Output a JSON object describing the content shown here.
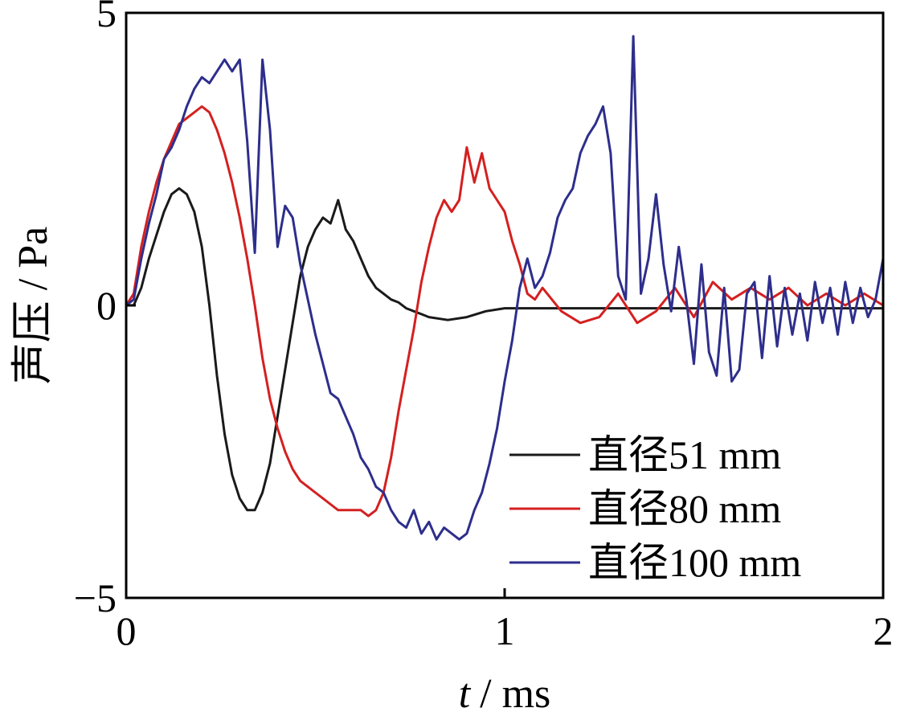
{
  "chart_data": {
    "type": "line",
    "title": "",
    "xlabel_var": "t",
    "xlabel_unit": "/ ms",
    "ylabel": "声压 / Pa",
    "xlim": [
      0,
      2
    ],
    "ylim": [
      -5,
      5
    ],
    "xticks": [
      0,
      1,
      2
    ],
    "xtick_labels": [
      "0",
      "1",
      "2"
    ],
    "yticks": [
      5,
      0,
      -5
    ],
    "ytick_labels": [
      "5",
      "0",
      "−5"
    ],
    "grid": false,
    "legend_position": "bottom-right",
    "series": [
      {
        "name": "直径51 mm",
        "color": "#1a1a1a",
        "x": [
          0,
          0.02,
          0.04,
          0.06,
          0.08,
          0.1,
          0.12,
          0.14,
          0.16,
          0.18,
          0.2,
          0.22,
          0.24,
          0.26,
          0.28,
          0.3,
          0.32,
          0.34,
          0.36,
          0.38,
          0.4,
          0.42,
          0.44,
          0.46,
          0.48,
          0.5,
          0.52,
          0.54,
          0.56,
          0.58,
          0.6,
          0.62,
          0.64,
          0.66,
          0.68,
          0.7,
          0.72,
          0.74,
          0.76,
          0.78,
          0.8,
          0.85,
          0.9,
          0.95,
          1.0,
          1.1,
          1.2,
          1.3,
          1.4,
          1.5,
          1.6,
          1.7,
          1.8,
          1.9,
          2.0
        ],
        "y": [
          0.0,
          0.0,
          0.3,
          0.8,
          1.2,
          1.6,
          1.9,
          2.0,
          1.9,
          1.6,
          1.0,
          0.0,
          -1.2,
          -2.2,
          -2.9,
          -3.3,
          -3.5,
          -3.5,
          -3.2,
          -2.7,
          -1.9,
          -1.1,
          -0.3,
          0.5,
          1.0,
          1.3,
          1.5,
          1.4,
          1.8,
          1.3,
          1.1,
          0.8,
          0.5,
          0.3,
          0.2,
          0.1,
          0.05,
          -0.05,
          -0.1,
          -0.15,
          -0.2,
          -0.25,
          -0.2,
          -0.1,
          -0.05,
          -0.05,
          -0.05,
          -0.05,
          -0.05,
          -0.05,
          -0.05,
          -0.05,
          -0.05,
          -0.05,
          -0.05
        ]
      },
      {
        "name": "直径80 mm",
        "color": "#d42020",
        "x": [
          0,
          0.02,
          0.04,
          0.06,
          0.08,
          0.1,
          0.12,
          0.14,
          0.16,
          0.18,
          0.2,
          0.22,
          0.24,
          0.26,
          0.28,
          0.3,
          0.32,
          0.34,
          0.36,
          0.38,
          0.4,
          0.42,
          0.44,
          0.46,
          0.48,
          0.5,
          0.52,
          0.54,
          0.56,
          0.58,
          0.6,
          0.62,
          0.64,
          0.66,
          0.68,
          0.7,
          0.72,
          0.74,
          0.76,
          0.78,
          0.8,
          0.82,
          0.84,
          0.86,
          0.88,
          0.9,
          0.92,
          0.94,
          0.96,
          0.98,
          1.0,
          1.02,
          1.04,
          1.06,
          1.08,
          1.1,
          1.15,
          1.2,
          1.25,
          1.3,
          1.35,
          1.4,
          1.45,
          1.5,
          1.55,
          1.6,
          1.65,
          1.7,
          1.75,
          1.8,
          1.85,
          1.9,
          1.95,
          2.0
        ],
        "y": [
          0.0,
          0.2,
          1.0,
          1.6,
          2.1,
          2.5,
          2.8,
          3.1,
          3.2,
          3.3,
          3.4,
          3.3,
          3.0,
          2.6,
          2.1,
          1.5,
          0.8,
          0.0,
          -0.9,
          -1.6,
          -2.1,
          -2.5,
          -2.8,
          -3.0,
          -3.1,
          -3.2,
          -3.3,
          -3.4,
          -3.5,
          -3.5,
          -3.5,
          -3.5,
          -3.6,
          -3.5,
          -3.2,
          -2.6,
          -1.8,
          -1.1,
          -0.4,
          0.4,
          1.0,
          1.5,
          1.8,
          1.6,
          1.8,
          2.7,
          2.1,
          2.6,
          2.0,
          1.8,
          1.6,
          1.1,
          0.7,
          0.2,
          0.1,
          0.3,
          -0.1,
          -0.3,
          -0.2,
          0.2,
          -0.3,
          -0.1,
          0.3,
          -0.2,
          0.4,
          0.1,
          0.3,
          0.1,
          0.3,
          0.0,
          0.2,
          0.0,
          0.2,
          0.0
        ]
      },
      {
        "name": "直径100 mm",
        "color": "#2e2e8c",
        "x": [
          0,
          0.02,
          0.04,
          0.06,
          0.08,
          0.1,
          0.12,
          0.14,
          0.16,
          0.18,
          0.2,
          0.22,
          0.24,
          0.26,
          0.28,
          0.3,
          0.32,
          0.34,
          0.36,
          0.38,
          0.4,
          0.42,
          0.44,
          0.46,
          0.48,
          0.5,
          0.52,
          0.54,
          0.56,
          0.58,
          0.6,
          0.62,
          0.64,
          0.66,
          0.68,
          0.7,
          0.72,
          0.74,
          0.76,
          0.78,
          0.8,
          0.82,
          0.84,
          0.86,
          0.88,
          0.9,
          0.92,
          0.94,
          0.96,
          0.98,
          1.0,
          1.02,
          1.04,
          1.06,
          1.08,
          1.1,
          1.12,
          1.14,
          1.16,
          1.18,
          1.2,
          1.22,
          1.24,
          1.26,
          1.28,
          1.3,
          1.32,
          1.34,
          1.36,
          1.38,
          1.4,
          1.42,
          1.44,
          1.46,
          1.48,
          1.5,
          1.52,
          1.54,
          1.56,
          1.58,
          1.6,
          1.62,
          1.64,
          1.66,
          1.68,
          1.7,
          1.72,
          1.74,
          1.76,
          1.78,
          1.8,
          1.82,
          1.84,
          1.86,
          1.88,
          1.9,
          1.92,
          1.94,
          1.96,
          1.98,
          2.0
        ],
        "y": [
          0.0,
          0.1,
          0.8,
          1.4,
          1.9,
          2.5,
          2.7,
          3.0,
          3.4,
          3.7,
          3.9,
          3.8,
          4.0,
          4.2,
          4.0,
          4.2,
          2.8,
          0.9,
          4.2,
          3.0,
          1.0,
          1.7,
          1.5,
          0.7,
          0.1,
          -0.5,
          -1.0,
          -1.5,
          -1.6,
          -1.9,
          -2.2,
          -2.6,
          -2.8,
          -3.1,
          -3.2,
          -3.5,
          -3.7,
          -3.8,
          -3.5,
          -3.9,
          -3.7,
          -4.0,
          -3.8,
          -3.9,
          -4.0,
          -3.9,
          -3.5,
          -3.2,
          -2.7,
          -2.1,
          -1.3,
          -0.6,
          0.3,
          0.8,
          0.3,
          0.5,
          0.9,
          1.5,
          1.8,
          2.0,
          2.6,
          2.9,
          3.1,
          3.4,
          2.6,
          0.5,
          0.1,
          4.6,
          0.2,
          0.8,
          1.9,
          0.7,
          -0.1,
          1.0,
          0.1,
          -1.0,
          0.7,
          -0.8,
          -1.2,
          0.3,
          -1.3,
          -1.1,
          0.2,
          0.4,
          -0.9,
          0.5,
          -0.7,
          0.3,
          -0.5,
          0.2,
          -0.6,
          0.4,
          -0.3,
          0.3,
          -0.5,
          0.4,
          -0.3,
          0.3,
          -0.2,
          0.1,
          0.8
        ]
      }
    ]
  }
}
